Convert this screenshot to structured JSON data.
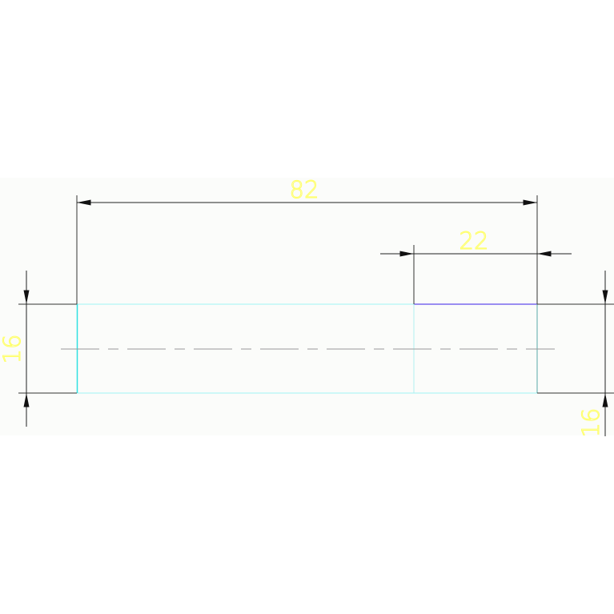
{
  "drawing": {
    "dimensions": [
      {
        "id": "overall-length",
        "text": "82"
      },
      {
        "id": "step-length",
        "text": "22"
      },
      {
        "id": "left-height",
        "text": "16"
      },
      {
        "id": "right-height",
        "text": "16"
      }
    ],
    "colors": {
      "background": "#fbfcfa",
      "outline": "#80f0f0",
      "edge_highlight": "#7b68ee",
      "dimension_line": "#222222",
      "centerline": "#999999",
      "dimension_text": "#ffff66"
    }
  }
}
